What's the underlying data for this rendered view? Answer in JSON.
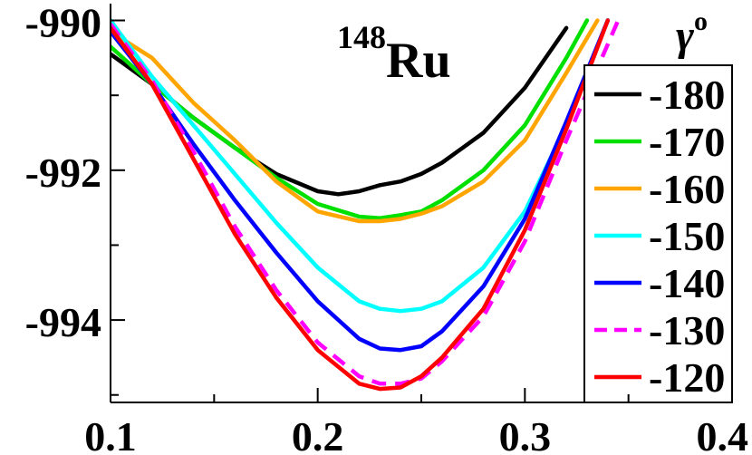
{
  "chart_data": {
    "type": "line",
    "title": "",
    "xlabel": "",
    "ylabel": "",
    "xlim": [
      0.1,
      0.4
    ],
    "ylim": [
      -995.1,
      -989.8
    ],
    "x_ticks": [
      {
        "value": 0.1,
        "label": "0.1"
      },
      {
        "value": 0.2,
        "label": "0.2"
      },
      {
        "value": 0.3,
        "label": "0.3"
      },
      {
        "value": 0.4,
        "label": "0.4"
      }
    ],
    "y_ticks": [
      {
        "value": -990,
        "label": "-990"
      },
      {
        "value": -992,
        "label": "-992"
      },
      {
        "value": -994,
        "label": "-994"
      }
    ],
    "annotation": {
      "superscript": "148",
      "text": "Ru"
    },
    "legend": {
      "title_symbol": "γ",
      "title_superscript": "o",
      "position": "right"
    },
    "series": [
      {
        "name": "-180",
        "color": "#000000",
        "dash": false,
        "x": [
          0.1,
          0.12,
          0.14,
          0.16,
          0.18,
          0.2,
          0.21,
          0.22,
          0.23,
          0.24,
          0.25,
          0.26,
          0.28,
          0.3,
          0.32
        ],
        "y": [
          -990.45,
          -990.85,
          -991.3,
          -991.7,
          -992.05,
          -992.28,
          -992.32,
          -992.28,
          -992.2,
          -992.15,
          -992.05,
          -991.9,
          -991.5,
          -990.9,
          -990.1
        ]
      },
      {
        "name": "-170",
        "color": "#00e000",
        "dash": false,
        "x": [
          0.1,
          0.12,
          0.14,
          0.16,
          0.18,
          0.2,
          0.22,
          0.23,
          0.24,
          0.25,
          0.26,
          0.28,
          0.3,
          0.32,
          0.33
        ],
        "y": [
          -990.35,
          -990.85,
          -991.3,
          -991.7,
          -992.1,
          -992.45,
          -992.62,
          -992.64,
          -992.6,
          -992.55,
          -992.4,
          -992.0,
          -991.4,
          -990.5,
          -990.0
        ]
      },
      {
        "name": "-160",
        "color": "#ffa500",
        "dash": false,
        "x": [
          0.1,
          0.12,
          0.14,
          0.16,
          0.18,
          0.2,
          0.22,
          0.23,
          0.24,
          0.25,
          0.26,
          0.28,
          0.3,
          0.32,
          0.335
        ],
        "y": [
          -990.15,
          -990.5,
          -991.1,
          -991.6,
          -992.15,
          -992.55,
          -992.68,
          -992.68,
          -992.65,
          -992.58,
          -992.48,
          -992.15,
          -991.6,
          -990.7,
          -990.0
        ]
      },
      {
        "name": "-150",
        "color": "#00ffff",
        "dash": false,
        "x": [
          0.1,
          0.12,
          0.14,
          0.16,
          0.18,
          0.2,
          0.22,
          0.23,
          0.24,
          0.25,
          0.26,
          0.28,
          0.3,
          0.32,
          0.34
        ],
        "y": [
          -990.0,
          -990.75,
          -991.4,
          -992.05,
          -992.7,
          -993.3,
          -993.75,
          -993.85,
          -993.88,
          -993.85,
          -993.75,
          -993.3,
          -992.55,
          -991.4,
          -990.0
        ]
      },
      {
        "name": "-140",
        "color": "#0000ff",
        "dash": false,
        "x": [
          0.1,
          0.12,
          0.14,
          0.16,
          0.18,
          0.2,
          0.22,
          0.23,
          0.24,
          0.25,
          0.26,
          0.28,
          0.3,
          0.32,
          0.34
        ],
        "y": [
          -990.15,
          -990.85,
          -991.65,
          -992.4,
          -993.1,
          -993.75,
          -994.25,
          -994.38,
          -994.4,
          -994.35,
          -994.15,
          -993.55,
          -992.65,
          -991.35,
          -990.0
        ]
      },
      {
        "name": "-130",
        "color": "#ff00ff",
        "dash": true,
        "x": [
          0.1,
          0.12,
          0.14,
          0.16,
          0.18,
          0.2,
          0.22,
          0.23,
          0.24,
          0.25,
          0.26,
          0.28,
          0.3,
          0.32,
          0.345
        ],
        "y": [
          -990.05,
          -990.8,
          -991.75,
          -992.75,
          -993.6,
          -994.3,
          -994.75,
          -994.85,
          -994.85,
          -994.78,
          -994.55,
          -993.95,
          -992.95,
          -991.6,
          -990.0
        ]
      },
      {
        "name": "-120",
        "color": "#ff0000",
        "dash": false,
        "x": [
          0.1,
          0.12,
          0.14,
          0.16,
          0.18,
          0.2,
          0.22,
          0.23,
          0.24,
          0.25,
          0.26,
          0.28,
          0.3,
          0.32,
          0.34
        ],
        "y": [
          -990.1,
          -990.85,
          -991.85,
          -992.85,
          -993.7,
          -994.4,
          -994.85,
          -994.92,
          -994.9,
          -994.75,
          -994.5,
          -993.85,
          -992.8,
          -991.45,
          -990.0
        ]
      }
    ]
  }
}
